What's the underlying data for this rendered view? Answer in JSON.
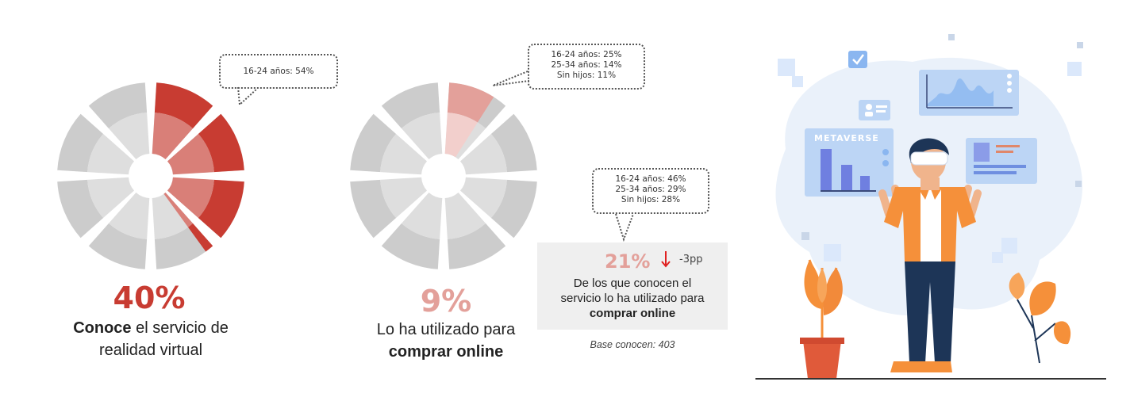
{
  "chart_data": [
    {
      "type": "pie",
      "value": 40,
      "value_label": "40%",
      "caption": {
        "bold": "Conoce",
        "rest": "el servicio de",
        "line2": "realidad virtual"
      },
      "callout": [
        "16-24 años: 54%"
      ]
    },
    {
      "type": "pie",
      "value": 9,
      "value_label": "9%",
      "caption": {
        "line1": "Lo ha utilizado para",
        "bold": "comprar online"
      },
      "callout": [
        "16-24 años: 25%",
        "25-34 años: 14%",
        "Sin hijos: 11%"
      ]
    },
    {
      "type": "table",
      "value": 21,
      "value_label": "21%",
      "change_label": "-3pp",
      "caption": {
        "line1": "De los que conocen el",
        "line2": "servicio lo ha utilizado para",
        "bold": "comprar online"
      },
      "callout": [
        "16-24 años: 46%",
        "25-34 años: 29%",
        "Sin hijos: 28%"
      ],
      "base_note": "Base conocen: 403"
    }
  ],
  "illustration": {
    "screen_label": "METAVERSE"
  },
  "colors": {
    "accent_dark": "#c83c32",
    "accent_mid": "#d97f78",
    "accent_light": "#e3a09a",
    "accent_pale": "#f2cfcc",
    "grey_outer": "#cccccc",
    "grey_inner": "#dedede",
    "down_arrow": "#e02020"
  }
}
